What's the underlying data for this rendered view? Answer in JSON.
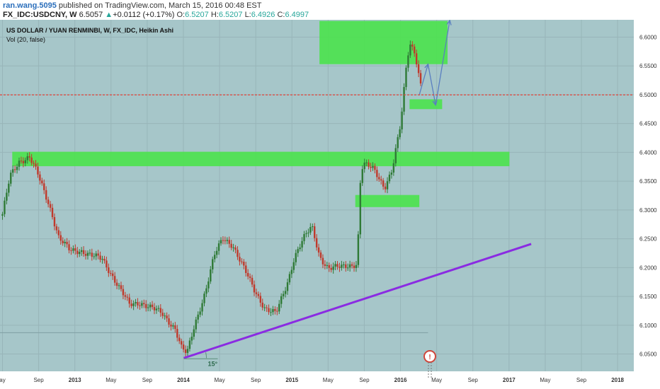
{
  "header": {
    "author": "ran.wang.5095",
    "published_text": "published on TradingView.com, March 15, 2016 00:48 EST",
    "symbol": "FX_IDC:USDCNY, W",
    "price": "6.5057",
    "change_arrow": "▲",
    "change": "+0.0112 (+0.17%)",
    "open_label": "O:",
    "open": "6.5207",
    "high_label": "H:",
    "high": "6.5207",
    "low_label": "L:",
    "low": "6.4926",
    "close_label": "C:",
    "close": "6.4997"
  },
  "chart_data": {
    "type": "candlestick",
    "title": "US DOLLAR / YUAN RENMINBI, W, FX_IDC, Heikin Ashi",
    "subtitle": "Vol (20, false)",
    "ylim": [
      6.02,
      6.63
    ],
    "y_ticks": [
      "6.6000",
      "6.5500",
      "6.5000",
      "6.4500",
      "6.4000",
      "6.3500",
      "6.3000",
      "6.2500",
      "6.2000",
      "6.1500",
      "6.1000",
      "6.0500"
    ],
    "x_ticks": [
      {
        "label": "ay",
        "bold": false
      },
      {
        "label": "Sep",
        "bold": false
      },
      {
        "label": "2013",
        "bold": true
      },
      {
        "label": "May",
        "bold": false
      },
      {
        "label": "Sep",
        "bold": false
      },
      {
        "label": "2014",
        "bold": true
      },
      {
        "label": "May",
        "bold": false
      },
      {
        "label": "Sep",
        "bold": false
      },
      {
        "label": "2015",
        "bold": true
      },
      {
        "label": "May",
        "bold": false
      },
      {
        "label": "Sep",
        "bold": false
      },
      {
        "label": "2016",
        "bold": true
      },
      {
        "label": "May",
        "bold": false
      },
      {
        "label": "Sep",
        "bold": false
      },
      {
        "label": "2017",
        "bold": true
      },
      {
        "label": "May",
        "bold": false
      },
      {
        "label": "Sep",
        "bold": false
      },
      {
        "label": "2018",
        "bold": true
      }
    ],
    "last_price": 6.4997,
    "last_price_label": "6.4997",
    "zones": [
      {
        "name": "supply-zone-top",
        "t0": 2015.25,
        "t1": 2016.43,
        "y0": 6.553,
        "y1": 6.628
      },
      {
        "name": "zone-6400",
        "t0": 2012.42,
        "t1": 2017.0,
        "y0": 6.376,
        "y1": 6.401
      },
      {
        "name": "zone-6300",
        "t0": 2015.58,
        "t1": 2016.17,
        "y0": 6.305,
        "y1": 6.326
      },
      {
        "name": "zone-6480",
        "t0": 2016.08,
        "t1": 2016.38,
        "y0": 6.475,
        "y1": 6.492
      }
    ],
    "trendline": {
      "t0": 2014.0,
      "y0": 6.043,
      "t1": 2017.2,
      "y1": 6.241
    },
    "trendline_angle_label": "15°",
    "faint_line": {
      "t0": 2012.0,
      "t1": 2016.25,
      "y": 6.087
    },
    "projection": [
      [
        2016.17,
        6.5
      ],
      [
        2016.25,
        6.553
      ],
      [
        2016.32,
        6.482
      ],
      [
        2016.45,
        6.629
      ]
    ],
    "price_path": [
      [
        2012.33,
        6.29
      ],
      [
        2012.4,
        6.36
      ],
      [
        2012.48,
        6.385
      ],
      [
        2012.58,
        6.39
      ],
      [
        2012.66,
        6.36
      ],
      [
        2012.76,
        6.31
      ],
      [
        2012.85,
        6.25
      ],
      [
        2012.95,
        6.23
      ],
      [
        2013.05,
        6.23
      ],
      [
        2013.15,
        6.22
      ],
      [
        2013.25,
        6.215
      ],
      [
        2013.33,
        6.19
      ],
      [
        2013.42,
        6.16
      ],
      [
        2013.5,
        6.135
      ],
      [
        2013.6,
        6.14
      ],
      [
        2013.7,
        6.13
      ],
      [
        2013.8,
        6.12
      ],
      [
        2013.92,
        6.095
      ],
      [
        2013.98,
        6.06
      ],
      [
        2014.03,
        6.05
      ],
      [
        2014.1,
        6.1
      ],
      [
        2014.2,
        6.16
      ],
      [
        2014.28,
        6.22
      ],
      [
        2014.36,
        6.25
      ],
      [
        2014.45,
        6.24
      ],
      [
        2014.55,
        6.2
      ],
      [
        2014.65,
        6.16
      ],
      [
        2014.75,
        6.13
      ],
      [
        2014.85,
        6.12
      ],
      [
        2014.95,
        6.17
      ],
      [
        2015.02,
        6.22
      ],
      [
        2015.1,
        6.25
      ],
      [
        2015.18,
        6.27
      ],
      [
        2015.25,
        6.22
      ],
      [
        2015.33,
        6.2
      ],
      [
        2015.45,
        6.2
      ],
      [
        2015.55,
        6.205
      ],
      [
        2015.6,
        6.208
      ],
      [
        2015.62,
        6.34
      ],
      [
        2015.65,
        6.38
      ],
      [
        2015.75,
        6.37
      ],
      [
        2015.85,
        6.34
      ],
      [
        2015.92,
        6.37
      ],
      [
        2016.0,
        6.45
      ],
      [
        2016.05,
        6.55
      ],
      [
        2016.08,
        6.59
      ],
      [
        2016.13,
        6.575
      ],
      [
        2016.16,
        6.54
      ],
      [
        2016.2,
        6.5
      ]
    ],
    "flag_label": "!"
  }
}
